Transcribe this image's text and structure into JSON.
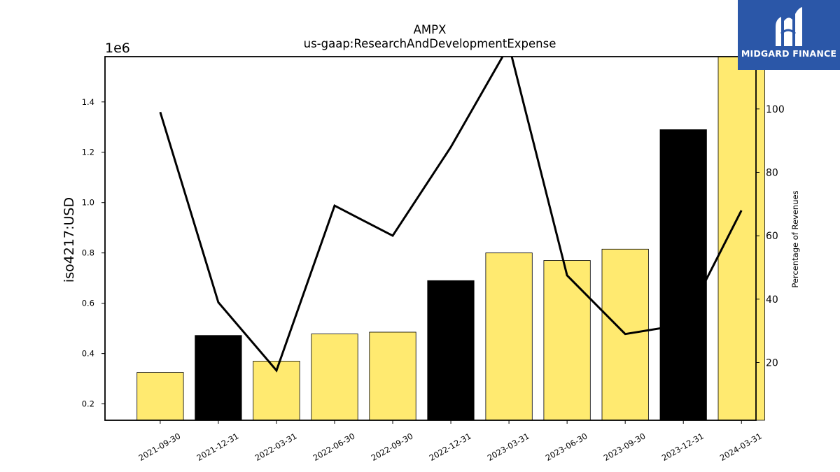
{
  "chart_data": {
    "type": "bar",
    "title": "AMPX",
    "subtitle": "us-gaap:ResearchAndDevelopmentExpense",
    "ylabel": "iso4217:USD",
    "y_offset_label": "1e6",
    "y2label": "Percentage of Revenues",
    "categories": [
      "2021-09-30",
      "2021-12-31",
      "2022-03-31",
      "2022-06-30",
      "2022-09-30",
      "2022-12-31",
      "2023-03-31",
      "2023-06-30",
      "2023-09-30",
      "2023-12-31",
      "2024-03-31"
    ],
    "series": [
      {
        "type": "bar",
        "values": [
          0.325,
          0.472,
          0.37,
          0.478,
          0.485,
          0.69,
          0.8,
          0.77,
          0.815,
          1.29,
          1.58
        ],
        "colors": [
          "#ffea70",
          "#000000",
          "#ffea70",
          "#ffea70",
          "#ffea70",
          "#000000",
          "#ffea70",
          "#ffea70",
          "#ffea70",
          "#000000",
          "#ffea70"
        ]
      },
      {
        "type": "line",
        "axis": "right",
        "values": [
          99,
          39,
          17.5,
          69.5,
          60,
          88,
          120,
          47.5,
          29,
          32,
          68
        ]
      }
    ],
    "ylim": [
      0.135,
      1.58
    ],
    "yticks": [
      0.2,
      0.4,
      0.6,
      0.8,
      1.0,
      1.2,
      1.4
    ],
    "y2lim": [
      1.8,
      116.5
    ],
    "y2ticks": [
      20,
      40,
      60,
      80,
      100
    ],
    "grid": false,
    "legend": "none"
  },
  "logo": {
    "text": "MIDGARD FINANCE",
    "bg_color": "#2b57a8"
  },
  "colors": {
    "bar_yellow": "#ffea70",
    "bar_black": "#000000",
    "line": "#000000"
  }
}
